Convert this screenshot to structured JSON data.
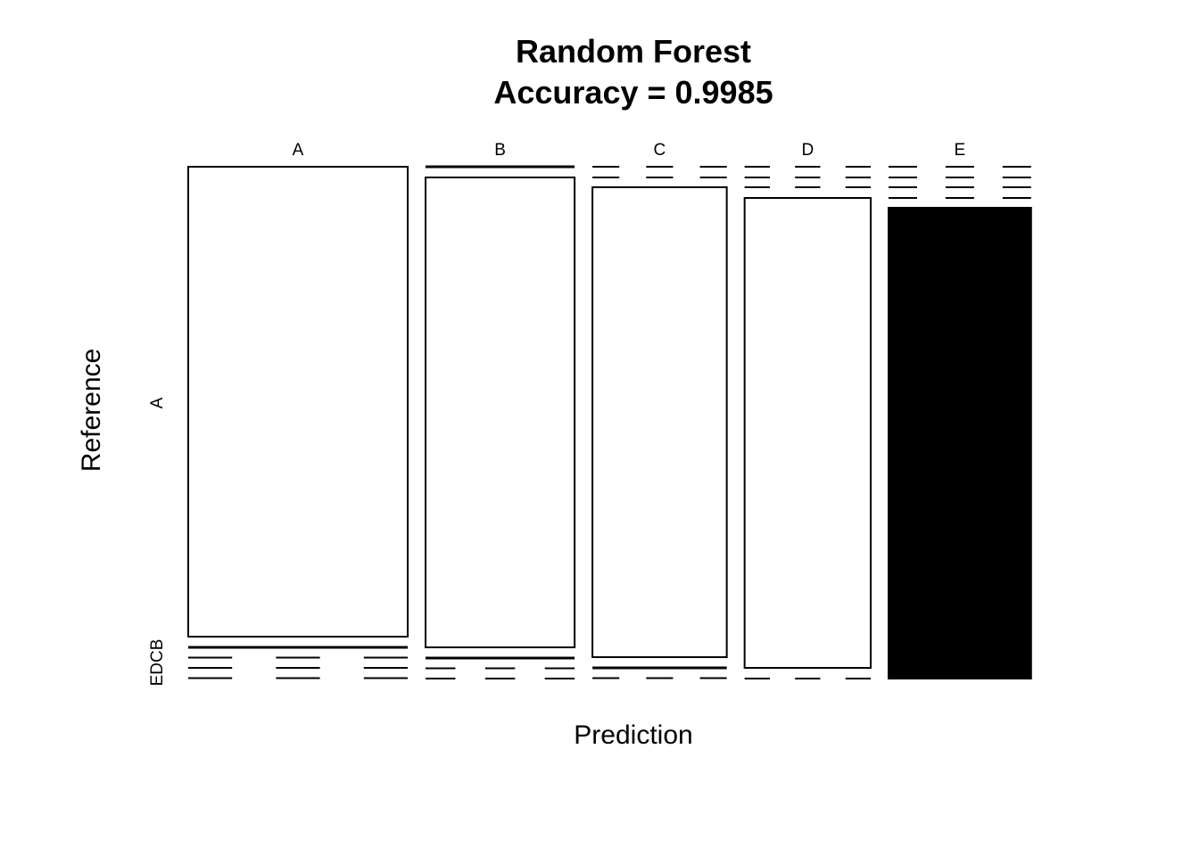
{
  "chart_data": {
    "type": "mosaic",
    "title": "Random Forest",
    "subtitle": "Accuracy = 0.9985",
    "xlabel": "Prediction",
    "ylabel": "Reference",
    "prediction_levels": [
      "A",
      "B",
      "C",
      "D",
      "E"
    ],
    "reference_levels": [
      "A",
      "B",
      "C",
      "D",
      "E"
    ],
    "reference_axis_labels": [
      "A",
      "B",
      "C",
      "D",
      "E"
    ],
    "column_proportions": [
      0.268,
      0.182,
      0.164,
      0.154,
      0.174
    ],
    "columns": [
      {
        "prediction": "A",
        "dominant_reference": "A",
        "fill": "#ffffff"
      },
      {
        "prediction": "B",
        "dominant_reference": "B",
        "fill": "#ffffff"
      },
      {
        "prediction": "C",
        "dominant_reference": "C",
        "fill": "#ffffff"
      },
      {
        "prediction": "D",
        "dominant_reference": "D",
        "fill": "#ffffff"
      },
      {
        "prediction": "E",
        "dominant_reference": "E",
        "fill": "#000000"
      }
    ],
    "colors": {
      "line": "#000000",
      "background": "#ffffff",
      "highlight": "#000000"
    }
  }
}
